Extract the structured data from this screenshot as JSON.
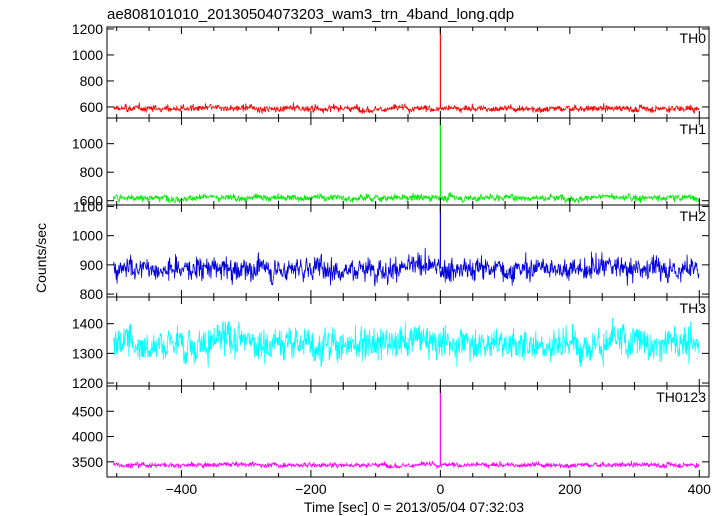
{
  "title": "ae808101010_20130504073203_wam3_trn_4band_long.qdp",
  "chart_data": {
    "type": "line",
    "title": "ae808101010_20130504073203_wam3_trn_4band_long.qdp",
    "xlabel": "Time [sec] 0 = 2013/05/04 07:32:03",
    "ylabel": "Counts/sec",
    "xlim": [
      -515,
      415
    ],
    "x_ticks": [
      -400,
      -200,
      0,
      200,
      400
    ],
    "x_tick_labels": [
      "−400",
      "−200",
      "0",
      "200",
      "400"
    ],
    "grid": false,
    "legend": "none",
    "panels": [
      {
        "name": "TH0",
        "color": "#ff0000",
        "ylim": [
          515,
          1215
        ],
        "y_ticks": [
          600,
          800,
          1000,
          1200
        ],
        "baseline": 588,
        "noise_amplitude": 28,
        "spike": {
          "x": 0,
          "peak": 1215
        }
      },
      {
        "name": "TH1",
        "color": "#00ee00",
        "ylim": [
          570,
          1180
        ],
        "y_ticks": [
          600,
          800,
          1000
        ],
        "baseline": 622,
        "noise_amplitude": 26,
        "spike": {
          "x": 0,
          "peak": 1180
        }
      },
      {
        "name": "TH2",
        "color": "#0000dd",
        "ylim": [
          790,
          1105
        ],
        "y_ticks": [
          800,
          900,
          1000,
          1100
        ],
        "baseline": 888,
        "noise_amplitude": 42,
        "spike": {
          "x": 0,
          "peak": 1105
        }
      },
      {
        "name": "TH3",
        "color": "#00ffff",
        "ylim": [
          1190,
          1490
        ],
        "y_ticks": [
          1200,
          1300,
          1400
        ],
        "baseline": 1335,
        "noise_amplitude": 60,
        "spike": null
      },
      {
        "name": "TH0123",
        "color": "#ff00ff",
        "ylim": [
          3200,
          5000
        ],
        "y_ticks": [
          3500,
          4000,
          4500
        ],
        "baseline": 3440,
        "noise_amplitude": 55,
        "spike": {
          "x": 0,
          "peak": 5000
        }
      }
    ]
  }
}
